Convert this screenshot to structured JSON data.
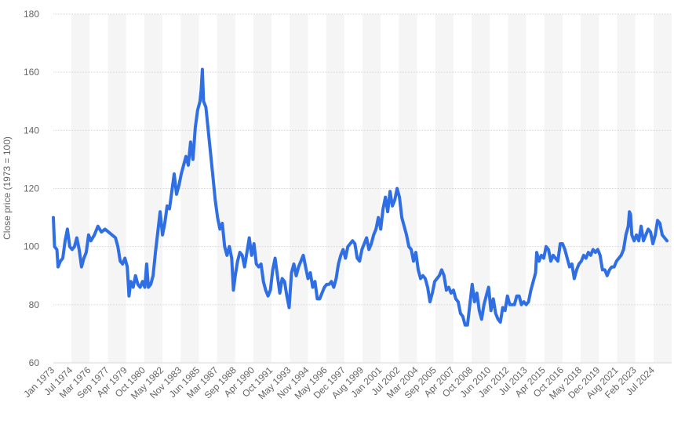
{
  "colors": {
    "line": "#2f6ee3",
    "grid": "#d7d7d7",
    "band": "#f5f5f5",
    "tick_text": "#666666"
  },
  "chart_data": {
    "type": "line",
    "title": "",
    "xlabel": "",
    "ylabel": "Close price (1973 = 100)",
    "ylim": [
      60,
      180
    ],
    "yticks": [
      60,
      80,
      100,
      120,
      140,
      160,
      180
    ],
    "xlim": [
      1973.0,
      2025.7
    ],
    "grid": true,
    "legend": "none",
    "x_tick_labels": [
      "Jan 1973",
      "Jul 1974",
      "Mar 1976",
      "Sep 1977",
      "Apr 1979",
      "Oct 1980",
      "May 1982",
      "Nov 1983",
      "Jun 1985",
      "Mar 1987",
      "Sep 1988",
      "Apr 1990",
      "Oct 1991",
      "May 1993",
      "Nov 1994",
      "May 1996",
      "Dec 1997",
      "Aug 1999",
      "Jan 2001",
      "Jul 2002",
      "Mar 2004",
      "Sep 2005",
      "Apr 2007",
      "Oct 2008",
      "Jun 2010",
      "Jan 2012",
      "Jul 2013",
      "Apr 2015",
      "Oct 2016",
      "May 2018",
      "Dec 2019",
      "Aug 2021",
      "Feb 2023",
      "Jul 2024"
    ],
    "series": [
      {
        "points": [
          [
            1973.0,
            110
          ],
          [
            1973.1,
            100
          ],
          [
            1973.3,
            99
          ],
          [
            1973.4,
            93
          ],
          [
            1973.6,
            95
          ],
          [
            1973.8,
            96
          ],
          [
            1974.0,
            102
          ],
          [
            1974.2,
            106
          ],
          [
            1974.4,
            100
          ],
          [
            1974.6,
            99
          ],
          [
            1974.8,
            100
          ],
          [
            1975.0,
            103
          ],
          [
            1975.2,
            99
          ],
          [
            1975.4,
            93
          ],
          [
            1975.6,
            96
          ],
          [
            1975.8,
            98
          ],
          [
            1976.0,
            104
          ],
          [
            1976.2,
            102
          ],
          [
            1976.5,
            104
          ],
          [
            1976.8,
            107
          ],
          [
            1977.1,
            105
          ],
          [
            1977.4,
            106
          ],
          [
            1977.7,
            105
          ],
          [
            1978.0,
            104
          ],
          [
            1978.3,
            103
          ],
          [
            1978.5,
            100
          ],
          [
            1978.7,
            95
          ],
          [
            1978.9,
            94
          ],
          [
            1979.1,
            96
          ],
          [
            1979.3,
            93
          ],
          [
            1979.45,
            83
          ],
          [
            1979.6,
            88
          ],
          [
            1979.8,
            86
          ],
          [
            1980.0,
            90
          ],
          [
            1980.2,
            87
          ],
          [
            1980.4,
            86
          ],
          [
            1980.6,
            88
          ],
          [
            1980.8,
            86
          ],
          [
            1980.95,
            94
          ],
          [
            1981.1,
            86
          ],
          [
            1981.3,
            87
          ],
          [
            1981.5,
            90
          ],
          [
            1981.7,
            98
          ],
          [
            1981.9,
            105
          ],
          [
            1982.1,
            112
          ],
          [
            1982.3,
            104
          ],
          [
            1982.5,
            108
          ],
          [
            1982.7,
            114
          ],
          [
            1982.9,
            113
          ],
          [
            1983.1,
            119
          ],
          [
            1983.3,
            125
          ],
          [
            1983.5,
            118
          ],
          [
            1983.7,
            121
          ],
          [
            1983.9,
            125
          ],
          [
            1984.1,
            128
          ],
          [
            1984.3,
            131
          ],
          [
            1984.5,
            128
          ],
          [
            1984.7,
            136
          ],
          [
            1984.9,
            130
          ],
          [
            1985.1,
            141
          ],
          [
            1985.3,
            147
          ],
          [
            1985.5,
            150
          ],
          [
            1985.6,
            154
          ],
          [
            1985.7,
            161
          ],
          [
            1985.8,
            150
          ],
          [
            1986.0,
            148
          ],
          [
            1986.2,
            140
          ],
          [
            1986.4,
            132
          ],
          [
            1986.6,
            124
          ],
          [
            1986.8,
            116
          ],
          [
            1987.0,
            110
          ],
          [
            1987.2,
            106
          ],
          [
            1987.4,
            108
          ],
          [
            1987.6,
            100
          ],
          [
            1987.8,
            97
          ],
          [
            1988.0,
            100
          ],
          [
            1988.2,
            96
          ],
          [
            1988.35,
            85
          ],
          [
            1988.5,
            90
          ],
          [
            1988.7,
            95
          ],
          [
            1988.9,
            98
          ],
          [
            1989.1,
            97
          ],
          [
            1989.3,
            93
          ],
          [
            1989.5,
            98
          ],
          [
            1989.7,
            103
          ],
          [
            1989.9,
            97
          ],
          [
            1990.1,
            101
          ],
          [
            1990.3,
            94
          ],
          [
            1990.5,
            93
          ],
          [
            1990.7,
            94
          ],
          [
            1990.9,
            88
          ],
          [
            1991.1,
            85
          ],
          [
            1991.3,
            83
          ],
          [
            1991.5,
            85
          ],
          [
            1991.7,
            92
          ],
          [
            1991.9,
            96
          ],
          [
            1992.1,
            90
          ],
          [
            1992.3,
            84
          ],
          [
            1992.5,
            89
          ],
          [
            1992.7,
            88
          ],
          [
            1992.9,
            83
          ],
          [
            1993.1,
            79
          ],
          [
            1993.3,
            91
          ],
          [
            1993.5,
            94
          ],
          [
            1993.7,
            90
          ],
          [
            1993.9,
            93
          ],
          [
            1994.1,
            95
          ],
          [
            1994.3,
            97
          ],
          [
            1994.5,
            93
          ],
          [
            1994.7,
            89
          ],
          [
            1994.9,
            91
          ],
          [
            1995.1,
            86
          ],
          [
            1995.3,
            88
          ],
          [
            1995.5,
            82
          ],
          [
            1995.7,
            82
          ],
          [
            1995.9,
            84
          ],
          [
            1996.1,
            86
          ],
          [
            1996.3,
            87
          ],
          [
            1996.5,
            87
          ],
          [
            1996.7,
            88
          ],
          [
            1996.9,
            86
          ],
          [
            1997.1,
            89
          ],
          [
            1997.3,
            94
          ],
          [
            1997.5,
            97
          ],
          [
            1997.7,
            99
          ],
          [
            1997.9,
            96
          ],
          [
            1998.1,
            100
          ],
          [
            1998.3,
            101
          ],
          [
            1998.5,
            102
          ],
          [
            1998.7,
            101
          ],
          [
            1998.9,
            96
          ],
          [
            1999.1,
            95
          ],
          [
            1999.3,
            99
          ],
          [
            1999.5,
            101
          ],
          [
            1999.7,
            103
          ],
          [
            1999.9,
            99
          ],
          [
            2000.1,
            101
          ],
          [
            2000.3,
            104
          ],
          [
            2000.5,
            106
          ],
          [
            2000.7,
            110
          ],
          [
            2000.9,
            106
          ],
          [
            2001.1,
            113
          ],
          [
            2001.3,
            117
          ],
          [
            2001.5,
            112
          ],
          [
            2001.7,
            119
          ],
          [
            2001.9,
            114
          ],
          [
            2002.1,
            116
          ],
          [
            2002.3,
            120
          ],
          [
            2002.5,
            117
          ],
          [
            2002.7,
            110
          ],
          [
            2002.9,
            107
          ],
          [
            2003.1,
            104
          ],
          [
            2003.3,
            100
          ],
          [
            2003.5,
            99
          ],
          [
            2003.7,
            95
          ],
          [
            2003.9,
            98
          ],
          [
            2004.1,
            92
          ],
          [
            2004.3,
            89
          ],
          [
            2004.5,
            90
          ],
          [
            2004.7,
            89
          ],
          [
            2004.9,
            86
          ],
          [
            2005.1,
            81
          ],
          [
            2005.3,
            84
          ],
          [
            2005.5,
            88
          ],
          [
            2005.7,
            89
          ],
          [
            2005.9,
            90
          ],
          [
            2006.1,
            92
          ],
          [
            2006.3,
            90
          ],
          [
            2006.5,
            85
          ],
          [
            2006.7,
            86
          ],
          [
            2006.9,
            84
          ],
          [
            2007.1,
            85
          ],
          [
            2007.3,
            82
          ],
          [
            2007.5,
            81
          ],
          [
            2007.7,
            77
          ],
          [
            2007.9,
            76
          ],
          [
            2008.1,
            73
          ],
          [
            2008.3,
            73
          ],
          [
            2008.5,
            80
          ],
          [
            2008.7,
            87
          ],
          [
            2008.9,
            81
          ],
          [
            2009.1,
            84
          ],
          [
            2009.3,
            78
          ],
          [
            2009.5,
            75
          ],
          [
            2009.7,
            80
          ],
          [
            2009.9,
            83
          ],
          [
            2010.1,
            86
          ],
          [
            2010.3,
            78
          ],
          [
            2010.5,
            82
          ],
          [
            2010.7,
            77
          ],
          [
            2010.9,
            75
          ],
          [
            2011.1,
            74
          ],
          [
            2011.3,
            79
          ],
          [
            2011.5,
            78
          ],
          [
            2011.7,
            83
          ],
          [
            2011.9,
            80
          ],
          [
            2012.1,
            80
          ],
          [
            2012.3,
            80
          ],
          [
            2012.5,
            83
          ],
          [
            2012.7,
            83
          ],
          [
            2012.9,
            80
          ],
          [
            2013.1,
            81
          ],
          [
            2013.3,
            80
          ],
          [
            2013.5,
            81
          ],
          [
            2013.7,
            85
          ],
          [
            2013.9,
            88
          ],
          [
            2014.1,
            91
          ],
          [
            2014.2,
            98
          ],
          [
            2014.4,
            95
          ],
          [
            2014.6,
            97
          ],
          [
            2014.8,
            96
          ],
          [
            2015.0,
            100
          ],
          [
            2015.2,
            99
          ],
          [
            2015.4,
            95
          ],
          [
            2015.6,
            97
          ],
          [
            2015.8,
            96
          ],
          [
            2016.0,
            95
          ],
          [
            2016.2,
            101
          ],
          [
            2016.4,
            101
          ],
          [
            2016.6,
            99
          ],
          [
            2016.8,
            96
          ],
          [
            2017.0,
            93
          ],
          [
            2017.2,
            94
          ],
          [
            2017.4,
            89
          ],
          [
            2017.6,
            92
          ],
          [
            2017.8,
            94
          ],
          [
            2018.0,
            95
          ],
          [
            2018.2,
            97
          ],
          [
            2018.4,
            96
          ],
          [
            2018.6,
            98
          ],
          [
            2018.8,
            97
          ],
          [
            2019.0,
            99
          ],
          [
            2019.2,
            98
          ],
          [
            2019.4,
            99
          ],
          [
            2019.6,
            97
          ],
          [
            2019.8,
            92
          ],
          [
            2020.0,
            92
          ],
          [
            2020.2,
            90
          ],
          [
            2020.4,
            92
          ],
          [
            2020.6,
            93
          ],
          [
            2020.8,
            93
          ],
          [
            2021.0,
            95
          ],
          [
            2021.2,
            96
          ],
          [
            2021.4,
            97
          ],
          [
            2021.6,
            99
          ],
          [
            2021.8,
            104
          ],
          [
            2022.0,
            107
          ],
          [
            2022.1,
            112
          ],
          [
            2022.2,
            111
          ],
          [
            2022.3,
            104
          ],
          [
            2022.5,
            102
          ],
          [
            2022.7,
            104
          ],
          [
            2022.9,
            102
          ],
          [
            2023.1,
            107
          ],
          [
            2023.3,
            102
          ],
          [
            2023.5,
            104
          ],
          [
            2023.7,
            106
          ],
          [
            2023.9,
            105
          ],
          [
            2024.1,
            101
          ],
          [
            2024.3,
            104
          ],
          [
            2024.5,
            109
          ],
          [
            2024.7,
            108
          ],
          [
            2024.9,
            104
          ],
          [
            2025.1,
            103
          ],
          [
            2025.3,
            102
          ]
        ]
      }
    ]
  }
}
